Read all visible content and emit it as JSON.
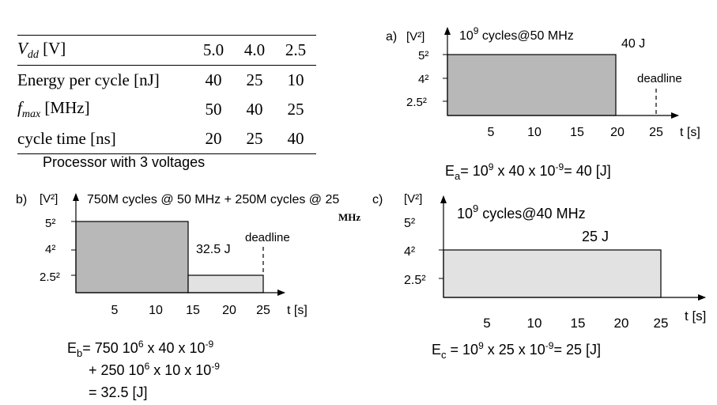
{
  "table": {
    "header": {
      "label_sym": "V",
      "label_sub": "dd",
      "label_unit": " [V]",
      "values": [
        "5.0",
        "4.0",
        "2.5"
      ]
    },
    "rows": [
      {
        "label": "Energy per cycle [nJ]",
        "values": [
          "40",
          "25",
          "10"
        ]
      },
      {
        "label_sym": "f",
        "label_sub": "max",
        "label_unit": " [MHz]",
        "values": [
          "50",
          "40",
          "25"
        ]
      },
      {
        "label": "cycle time [ns]",
        "values": [
          "20",
          "25",
          "40"
        ]
      }
    ],
    "caption": "Processor with 3 voltages"
  },
  "common": {
    "y_unit": "[V²]",
    "x_unit": "t [s]",
    "deadline": "deadline"
  },
  "panel_a": {
    "tag": "a)",
    "title_base": "10",
    "title_exp": "9",
    "title_rest": " cycles@50 MHz",
    "energy": "40 J",
    "y_ticks": [
      "5²",
      "4²",
      "2.5²"
    ],
    "x_ticks": [
      "5",
      "10",
      "15",
      "20",
      "25"
    ],
    "formula": {
      "E": "E",
      "sub": "a",
      "p1": "= 10",
      "e1": "9",
      "p2": " x 40 x 10",
      "e2": "-9",
      "p3": "= 40 [J]"
    }
  },
  "panel_b": {
    "tag": "b)",
    "title": "750M cycles @ 50 MHz + 250M cycles @ 25",
    "title_unit": "MHz",
    "energy": "32.5 J",
    "y_ticks": [
      "5²",
      "4²",
      "2.5²"
    ],
    "x_ticks": [
      "5",
      "10",
      "15",
      "20",
      "25"
    ],
    "formula": {
      "E": "E",
      "sub": "b",
      "l1a": "= 750 10",
      "l1e1": "6",
      "l1b": " x 40 x 10",
      "l1e2": "-9",
      "l2a": "+ 250 10",
      "l2e1": "6",
      "l2b": " x 10 x 10",
      "l2e2": "-9",
      "l3": "= 32.5 [J]"
    }
  },
  "panel_c": {
    "tag": "c)",
    "title_base": "10",
    "title_exp": "9",
    "title_rest": " cycles@40 MHz",
    "energy": "25 J",
    "y_ticks": [
      "5²",
      "4²",
      "2.5²"
    ],
    "x_ticks": [
      "5",
      "10",
      "15",
      "20",
      "25"
    ],
    "formula": {
      "E": "E",
      "sub": "c",
      "p1": " = 10",
      "e1": "9",
      "p2": " x 25 x 10",
      "e2": "-9",
      "p3": "= 25 [J]"
    }
  },
  "colors": {
    "dark_fill": "#b8b8b8",
    "light_fill": "#e2e2e2",
    "line": "#000000"
  }
}
